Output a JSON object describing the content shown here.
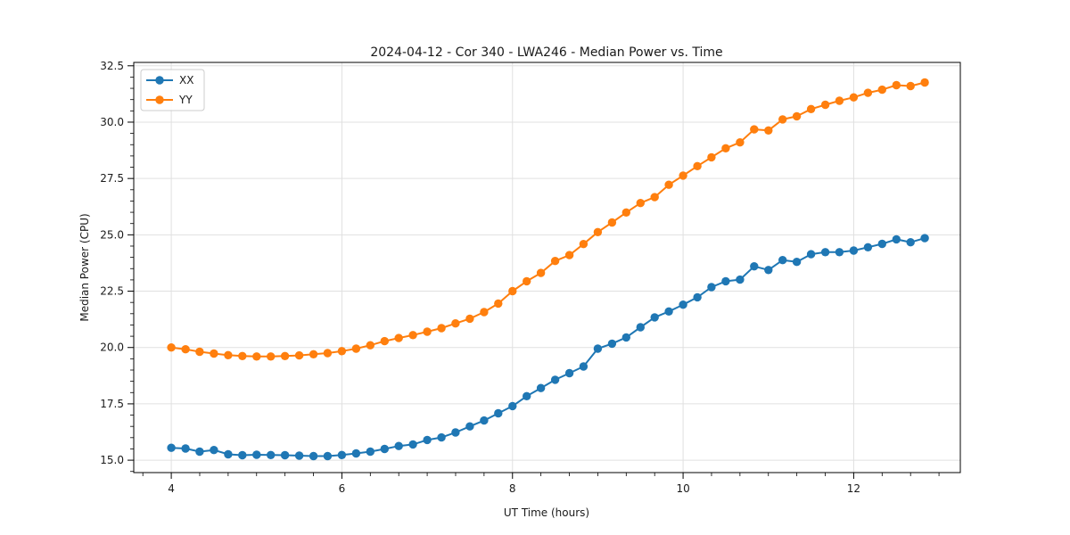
{
  "chart_data": {
    "type": "line",
    "title": "2024-04-12 - Cor 340 - LWA246 - Median Power vs. Time",
    "xlabel": "UT Time (hours)",
    "ylabel": "Median Power (CPU)",
    "xlim": [
      3.56,
      13.25
    ],
    "ylim": [
      14.45,
      32.65
    ],
    "x_major_ticks": [
      4,
      6,
      8,
      10,
      12
    ],
    "x_tick_labels": [
      "4",
      "6",
      "8",
      "10",
      "12"
    ],
    "y_major_ticks": [
      15.0,
      17.5,
      20.0,
      22.5,
      25.0,
      27.5,
      30.0,
      32.5
    ],
    "y_tick_labels": [
      "15.0",
      "17.5",
      "20.0",
      "22.5",
      "25.0",
      "27.5",
      "30.0",
      "32.5"
    ],
    "x_minor_divisions": 6,
    "y_minor_divisions": 5,
    "grid": "major",
    "grid_color": "#e0e0e0",
    "spine_color": "#000000",
    "legend_position": "upper-left",
    "x": [
      4.0,
      4.167,
      4.333,
      4.5,
      4.667,
      4.833,
      5.0,
      5.167,
      5.333,
      5.5,
      5.667,
      5.833,
      6.0,
      6.167,
      6.333,
      6.5,
      6.667,
      6.833,
      7.0,
      7.167,
      7.333,
      7.5,
      7.667,
      7.833,
      8.0,
      8.167,
      8.333,
      8.5,
      8.667,
      8.833,
      9.0,
      9.167,
      9.333,
      9.5,
      9.667,
      9.833,
      10.0,
      10.167,
      10.333,
      10.5,
      10.667,
      10.833,
      11.0,
      11.167,
      11.333,
      11.5,
      11.667,
      11.833,
      12.0,
      12.167,
      12.333,
      12.5,
      12.667,
      12.833
    ],
    "series": [
      {
        "name": "XX",
        "color": "#1f77b4",
        "values": [
          15.55,
          15.52,
          15.38,
          15.45,
          15.26,
          15.22,
          15.24,
          15.23,
          15.22,
          15.2,
          15.18,
          15.18,
          15.23,
          15.3,
          15.38,
          15.5,
          15.63,
          15.7,
          15.9,
          16.01,
          16.23,
          16.5,
          16.76,
          17.08,
          17.4,
          17.84,
          18.2,
          18.57,
          18.86,
          19.16,
          19.95,
          20.17,
          20.45,
          20.9,
          21.34,
          21.6,
          21.9,
          22.23,
          22.68,
          22.94,
          23.01,
          23.6,
          23.44,
          23.88,
          23.8,
          24.14,
          24.23,
          24.23,
          24.3,
          24.45,
          24.6,
          24.8,
          24.67,
          24.85
        ]
      },
      {
        "name": "YY",
        "color": "#ff7f0e",
        "values": [
          20.0,
          19.92,
          19.81,
          19.73,
          19.66,
          19.62,
          19.6,
          19.6,
          19.62,
          19.65,
          19.7,
          19.75,
          19.84,
          19.95,
          20.1,
          20.28,
          20.42,
          20.55,
          20.7,
          20.86,
          21.07,
          21.28,
          21.57,
          21.95,
          22.5,
          22.94,
          23.31,
          23.84,
          24.1,
          24.59,
          25.12,
          25.55,
          25.99,
          26.41,
          26.67,
          27.22,
          27.63,
          28.05,
          28.44,
          28.84,
          29.1,
          29.68,
          29.63,
          30.12,
          30.26,
          30.58,
          30.77,
          30.95,
          31.1,
          31.3,
          31.44,
          31.64,
          31.6,
          31.76
        ]
      }
    ]
  }
}
